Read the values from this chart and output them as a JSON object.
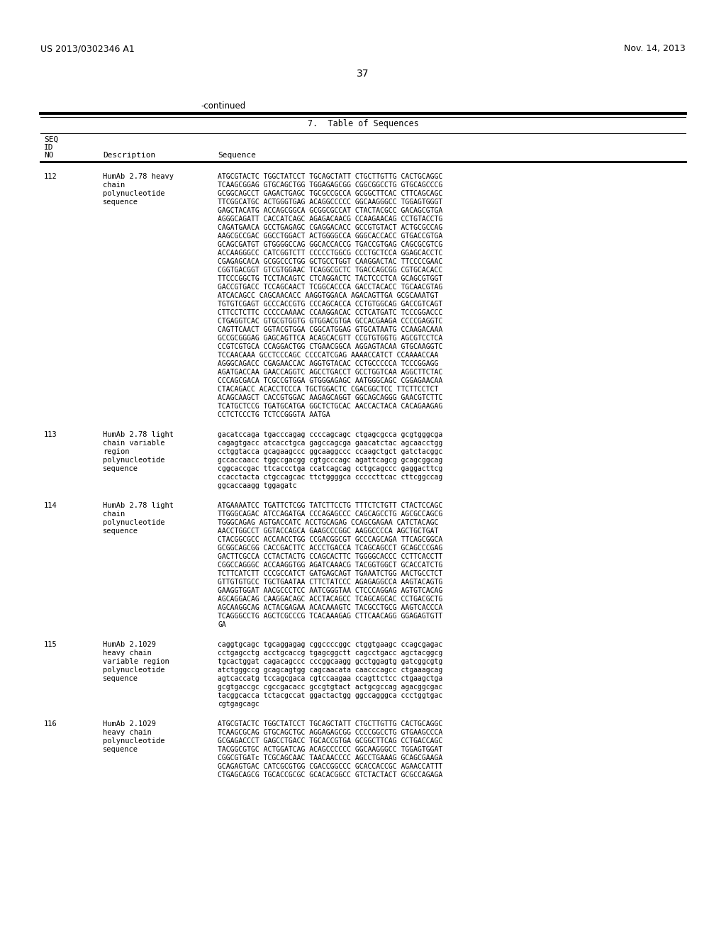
{
  "header_left": "US 2013/0302346 A1",
  "header_right": "Nov. 14, 2013",
  "page_number": "37",
  "continued_text": "-continued",
  "table_title": "7.  Table of Sequences",
  "background_color": "#ffffff",
  "entries": [
    {
      "seq_id": "112",
      "description": "HumAb 2.78 heavy\n    chain\n    polynucleotide\n    sequence",
      "sequence": "ATGCGTACTC TGGCTATCCT TGCAGCTATT CTGCTTGTTG CACTGCAGGC\nTCAAGCGGAG GTGCAGCTGG TGGAGAGCGG CGGCGGCCTG GTGCAGCCCG\nGCGGCAGCCT GAGACTGAGC TGCGCCGCCA GCGGCTTCAC CTTCAGCAGC\nTTCGGCATGC ACTGGGTGAG ACAGGCCCCC GGCAAGGGCC TGGAGTGGGT\nGAGCTACATG ACCAGCGGCA GCGGCGCCAT CTACTACGCC GACAGCGTGA\nAGGGCAGATT CACCATCAGC AGAGACAACG CCAAGAACAG CCTGTACCTG\nCAGATGAACA GCCTGAGAGC CGAGGACACC GCCGTGTACT ACTGCGCCAG\nAAGCGCCGAC GGCCTGGACT ACTGGGGCCA GGGCACCACC GTGACCGTGA\nGCAGCGATGT GTGGGGCCAG GGCACCACCG TGACCGTGAG CAGCGCGTCG\nACCAAGGGCC CATCGGTCTT CCCCCTGGCG CCCTGCTCCA GGAGCACCTC\nCGAGAGCACA GCGGCCCTGG GCTGCCTGGT CAAGGACTAC TTCCCCGAAC\nCGGTGACGGT GTCGTGGAAC TCAGGCGCTC TGACCAGCGG CGTGCACACC\nTTCCCGGCTG TCCTACAGTC CTCAGGACTC TACTCCCTCA GCAGCGTGGT\nGACCGTGACC TCCAGCAACT TCGGCACCCA GACCTACACC TGCAACGTAG\nATCACAGCC CAGCAACACC AAGGTGGACA AGACAGTTGA GCGCAAATGT\nTGTGTCGAGT GCCCACCGTG CCCAGCACCA CCTGTGGCAG GACCGTCAGT\nCTTCCTCTTC CCCCCAAAAC CCAAGGACAC CCTCATGATC TCCCGGACCC\nCTGAGGTCAC GTGCGTGGTG GTGGACGTGA GCCACGAAGA CCCCGAGGTC\nCAGTTCAACT GGTACGTGGA CGGCATGGAG GTGCATAATG CCAAGACAAA\nGCCGCGGGAG GAGCAGTTCA ACAGCACGTT CCGTGTGGTG AGCGTCCTCA\nCCGTCGTGCA CCAGGACTGG CTGAACGGCA AGGAGTACAA GTGCAAGGTC\nTCCAACAAA GCCTCCCAGC CCCCATCGAG AAAACCATCT CCAAAACCAA\nAGGGCAGACC CGAGAACCAC AGGTGTACAC CCTGCCCCCA TCCCGGAGG\nAGATGACCAA GAACCAGGTC AGCCTGACCT GCCTGGTCAA AGGCTTCTAC\nCCCAGCGACA TCGCCGTGGA GTGGGAGAGC AATGGGCAGC CGGAGAACAA\nCTACAGACC ACACCTCCCA TGCTGGACTC CGACGGCTCC TTCTTCCTCT\nACAGCAAGCT CACCGTGGAC AAGAGCAGGT GGCAGCAGGG GAACGTCTTC\nTCATGCTCCG TGATGCATGA GGCTCTGCAC AACCACTACA CACAGAAGAG\nCCTCTCCCTG TCTCCGGGTA AATGA"
    },
    {
      "seq_id": "113",
      "description": "HumAb 2.78 light\n    chain variable\n    region\n    polynucleotide\n    sequence",
      "sequence": "gacatccaga tgacccagag ccccagcagc ctgagcgcca gcgtgggcga\ncagagtgacc atcacctgca gagccagcga gaacatctac agcaacctgg\ncctggtacca gcagaagccc ggcaaggccc ccaagctgct gatctacggc\ngccaccaacc tggccgacgg cgtgcccagc agattcagcg gcagcggcag\ncggcaccgac ttcaccctga ccatcagcag cctgcagccc gaggacttcg\nccacctacta ctgccagcac ttctggggca cccccttcac cttcggccag\nggcaccaagg tggagatc"
    },
    {
      "seq_id": "114",
      "description": "HumAb 2.78 light\n    chain\n    polynucleotide\n    sequence",
      "sequence": "ATGAAAATCC TGATTCTCGG TATCTTCCTG TTTCTCTGTT CTACTCCAGC\nTTGGGCAGAC ATCCAGATGA CCCAGAGCCC CAGCAGCCTG AGCGCCAGCG\nTGGGCAGAG AGTGACCATC ACCTGCAGAG CCAGCGAGAA CATCTACAGC\nAACCTGGCCT GGTACCAGCA GAAGCCCGGC AAGGCCCCA AGCTGCTGAT\nCTACGGCGCC ACCAACCTGG CCGACGGCGT GCCCAGCAGA TTCAGCGGCA\nGCGGCAGCGG CACCGACTTC ACCCTGACCA TCAGCAGCCT GCAGCCCGAG\nGACTTCGCCA CCTACTACTG CCAGCACTTC TGGGGCACCC CCTTCACCTT\nCGGCCAGGGC ACCAAGGTGG AGATCAAACG TACGGTGGCT GCACCATCTG\nTCTTCATCTT CCCGCCATCT GATGAGCAGT TGAAATCTGG AACTGCCTCT\nGTTGTGTGCC TGCTGAATAA CTTCTATCCC AGAGAGGCCA AAGTACAGTG\nGAAGGTGGAT AACGCCCTCC AATCGGGTAA CTCCCAGGAG AGTGTCACAG\nAGCAGGACAG CAAGGACAGC ACCTACAGCC TCAGCAGCAC CCTGACGCTG\nAGCAAGGCAG ACTACGAGAA ACACAAAGTC TACGCCTGCG AAGTCACCCA\nTCAGGGCCTG AGCTCGCCCG TCACAAAGAG CTTCAACAGG GGAGAGTGTT\nGA"
    },
    {
      "seq_id": "115",
      "description": "HumAb 2.1029\n    heavy chain\n    variable region\n    polynucleotide\n    sequence",
      "sequence": "caggtgcagc tgcaggagag cggccccggc ctggtgaagc ccagcgagac\ncctgagcctg acctgcaccg tgagcggctt cagcctgacc agctacggcg\ntgcactggat cagacagccc cccggcaagg gcctggagtg gatcggcgtg\natctgggccg gcagcagtgg cagcaacata caacccagcc ctgaaagcag\nagtcaccatg tccagcgaca cgtccaagaa ccagttctcc ctgaagctga\ngcgtgaccgc cgccgacacc gccgtgtact actgcgccag agacggcgac\ntacggcacca tctacgccat ggactactgg ggccagggca ccctggtgac\ncgtgagcagc"
    },
    {
      "seq_id": "116",
      "description": "HumAb 2.1029\n    heavy chain\n    polynucleotide\n    sequence",
      "sequence": "ATGCGTACTC TGGCTATCCT TGCAGCTATT CTGCTTGTTG CACTGCAGGC\nTCAAGCGCAG GTGCAGCTGC AGGAGAGCGG CCCCGGCCTG GTGAAGCCCA\nGCGAGACCCT GAGCCTGACC TGCACCGTGA GCGGCTTCAG CCTGACCAGC\nTACGGCGTGC ACTGGATCAG ACAGCCCCCC GGCAAGGGCC TGGAGTGGAT\nCGGCGTGATc TCGCAGCAAC TAACAACCCC AGCCTGAAAG GCAGCGAAGA\nGCAGAGTGAC CATCGCGTGG CGACCGGCCC GCACCACCGC AGAACCATTT\nCTGAGCAGCG TGCACCGCGC GCACACGGCC GTCTACTACT GCGCCAGAGA"
    }
  ]
}
